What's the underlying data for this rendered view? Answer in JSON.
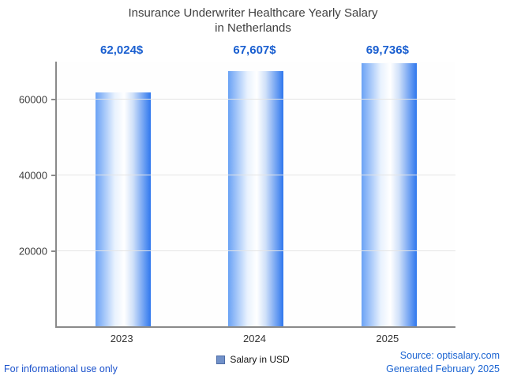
{
  "title": {
    "line1": "Insurance Underwriter Healthcare Yearly Salary",
    "line2": "in Netherlands"
  },
  "chart_data": {
    "type": "bar",
    "title": "Insurance Underwriter Healthcare Yearly Salary in Netherlands",
    "categories": [
      "2023",
      "2024",
      "2025"
    ],
    "values": [
      62024,
      67607,
      69736
    ],
    "value_labels": [
      "62,024$",
      "67,607$",
      "69,736$"
    ],
    "xlabel": "",
    "ylabel": "",
    "ylim": [
      0,
      70000
    ],
    "yticks": [
      20000,
      40000,
      60000
    ],
    "grid": true,
    "legend": {
      "label": "Salary in USD",
      "position": "bottom-center",
      "swatch_color": "#7191c9"
    },
    "bar_gradient": [
      "#6aa2f5",
      "#e9f2fe",
      "#ffffff",
      "#cfe0f9",
      "#2f77ee"
    ]
  },
  "footer": {
    "left_note": "For informational use only",
    "source": "Source: optisalary.com",
    "generated": "Generated February 2025"
  },
  "colors": {
    "accent_value_blue": "#1a5fd0",
    "footer_blue": "#1b5ecf",
    "title_gray": "#3f3f3f",
    "axis_gray": "#8a8a8a",
    "grid_gray": "#e4e4e4"
  }
}
